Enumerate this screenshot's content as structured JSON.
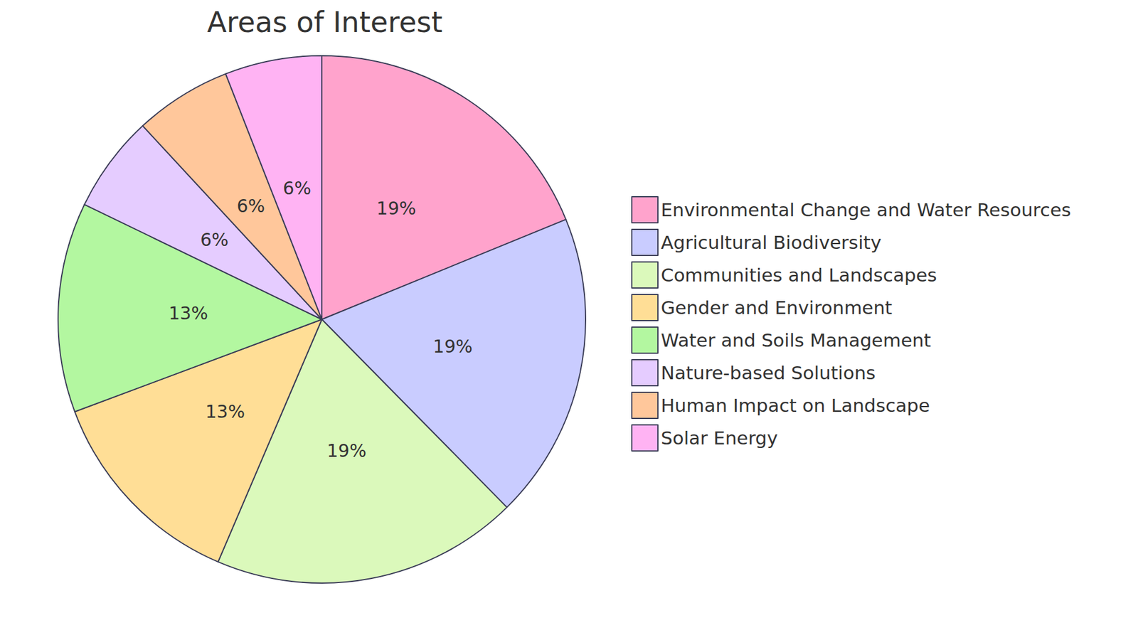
{
  "chart_data": {
    "type": "pie",
    "title": "Areas of Interest",
    "categories": [
      "Environmental Change and Water Resources",
      "Agricultural Biodiversity",
      "Communities and Landscapes",
      "Gender and Environment",
      "Water and Soils Management",
      "Nature-based Solutions",
      "Human Impact on Landscape",
      "Solar Energy"
    ],
    "values": [
      19,
      19,
      19,
      13,
      13,
      6,
      6,
      6
    ],
    "value_labels": [
      "19%",
      "19%",
      "19%",
      "13%",
      "13%",
      "6%",
      "6%",
      "6%"
    ],
    "colors": [
      "#ffa3cc",
      "#c9ccff",
      "#dbf9bb",
      "#ffde96",
      "#b3f7a0",
      "#e5ccff",
      "#ffc79b",
      "#ffb3f3"
    ],
    "legend": "right",
    "data_labels": true
  }
}
